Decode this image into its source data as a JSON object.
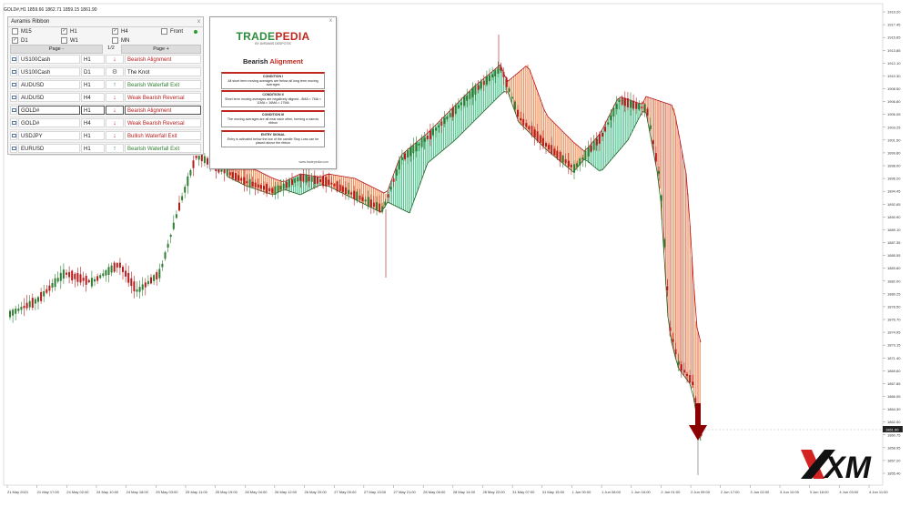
{
  "chart": {
    "symbol_header": "GOLD#,H1  1859.66 1862.71 1859.15 1861.90",
    "current_price_label": "1861.90",
    "y_axis_labels": [
      "1919.20",
      "1917.45",
      "1915.65",
      "1913.85",
      "1912.10",
      "1910.30",
      "1908.50",
      "1906.80",
      "1905.05",
      "1903.25",
      "1901.50",
      "1899.80",
      "1898.00",
      "1896.20",
      "1894.45",
      "1892.65",
      "1890.90",
      "1889.10",
      "1887.35",
      "1885.55",
      "1883.80",
      "1882.00",
      "1880.25",
      "1878.50",
      "1876.70",
      "1874.95",
      "1873.15",
      "1871.40",
      "1869.60",
      "1867.85",
      "1866.05",
      "1864.30",
      "1862.50",
      "1860.75",
      "1858.95",
      "1857.20",
      "1855.40"
    ],
    "x_axis_labels": [
      "21 May 2021",
      "21 May 17:00",
      "24 May 02:00",
      "24 May 10:00",
      "24 May 18:00",
      "25 May 03:00",
      "25 May 11:00",
      "25 May 19:00",
      "26 May 04:00",
      "26 May 12:00",
      "26 May 20:00",
      "27 May 05:00",
      "27 May 13:00",
      "27 May 21:00",
      "28 May 06:00",
      "28 May 14:00",
      "28 May 22:00",
      "31 May 07:00",
      "31 May 15:00",
      "1 Jun 00:00",
      "1 Jun 08:00",
      "1 Jun 16:00",
      "2 Jun 01:00",
      "2 Jun 09:00",
      "2 Jun 17:00",
      "3 Jun 02:00",
      "3 Jun 10:00",
      "3 Jun 18:00",
      "4 Jun 03:00",
      "4 Jun 11:00"
    ],
    "colors": {
      "bull": "#2e7d32",
      "bear": "#b71c1c",
      "ribbon_green": "#2fb87a",
      "ribbon_green_dark": "#1b5e20",
      "ribbon_orange": "#f07a3a",
      "ribbon_red": "#b3121a",
      "arrow": "#8b0000"
    }
  },
  "ribbon_panel": {
    "title": "Avramis Ribbon",
    "close_label": "x",
    "timeframes": [
      {
        "label": "M15",
        "checked": false
      },
      {
        "label": "H1",
        "checked": true
      },
      {
        "label": "H4",
        "checked": true
      },
      {
        "label": "Front",
        "checked": false
      },
      {
        "label": "D1",
        "checked": true
      },
      {
        "label": "W1",
        "checked": false
      },
      {
        "label": "MN",
        "checked": false
      }
    ],
    "page_prev": "Page -",
    "page_indicator": "1/2",
    "page_next": "Page +",
    "rows": [
      {
        "symbol": "US100Cash",
        "tf": "H1",
        "arrow": "down",
        "arrow_glyph": "↓",
        "signal": "Bearish Alignment",
        "signal_color": "#b71c1c",
        "selected": false
      },
      {
        "symbol": "US100Cash",
        "tf": "D1",
        "arrow": "knot",
        "arrow_glyph": "⚙",
        "signal": "The Knot",
        "signal_color": "#222222",
        "selected": false
      },
      {
        "symbol": "AUDUSD",
        "tf": "H1",
        "arrow": "up",
        "arrow_glyph": "↑",
        "signal": "Bearish Waterfall Exit",
        "signal_color": "#2e7d32",
        "selected": false
      },
      {
        "symbol": "AUDUSD",
        "tf": "H4",
        "arrow": "down",
        "arrow_glyph": "↓",
        "signal": "Weak Bearish Reversal",
        "signal_color": "#b71c1c",
        "selected": false
      },
      {
        "symbol": "GOLD#",
        "tf": "H1",
        "arrow": "down",
        "arrow_glyph": "↓",
        "signal": "Bearish Alignment",
        "signal_color": "#b71c1c",
        "selected": true
      },
      {
        "symbol": "GOLD#",
        "tf": "H4",
        "arrow": "down",
        "arrow_glyph": "↓",
        "signal": "Weak Bearish Reversal",
        "signal_color": "#b71c1c",
        "selected": false
      },
      {
        "symbol": "USDJPY",
        "tf": "H1",
        "arrow": "down",
        "arrow_glyph": "↓",
        "signal": "Bullish Waterfall Exit",
        "signal_color": "#b71c1c",
        "selected": false
      },
      {
        "symbol": "EURUSD",
        "tf": "H1",
        "arrow": "up",
        "arrow_glyph": "↑",
        "signal": "Bearish Waterfall Exit",
        "signal_color": "#2e7d32",
        "selected": false
      }
    ]
  },
  "tradepedia_card": {
    "close_label": "x",
    "logo_trade": "TRADE",
    "logo_pedia": "PEDIA",
    "logo_sub": "BY AVRAMIS DESPOTIS",
    "title_part1": "Bearish ",
    "title_part2": "Alignment",
    "conditions": [
      {
        "heading": "CONDITION I",
        "text": "All short term moving averages are below all long term moving averages"
      },
      {
        "heading": "CONDITION II",
        "text": "Short term moving averages are negatively aligned - 8MA < 7MA < 11MA < 16MA < 17MA"
      },
      {
        "heading": "CONDITION III",
        "text": "The moving averages are all near each other, forming a narrow ribbon"
      },
      {
        "heading": "ENTRY SIGNAL",
        "text": "Entry is activated below the low of the candle Stop Loss can be placed above the ribbon"
      }
    ],
    "url": "www.tradepedia.com"
  },
  "brand_logo": {
    "text": "XM"
  }
}
